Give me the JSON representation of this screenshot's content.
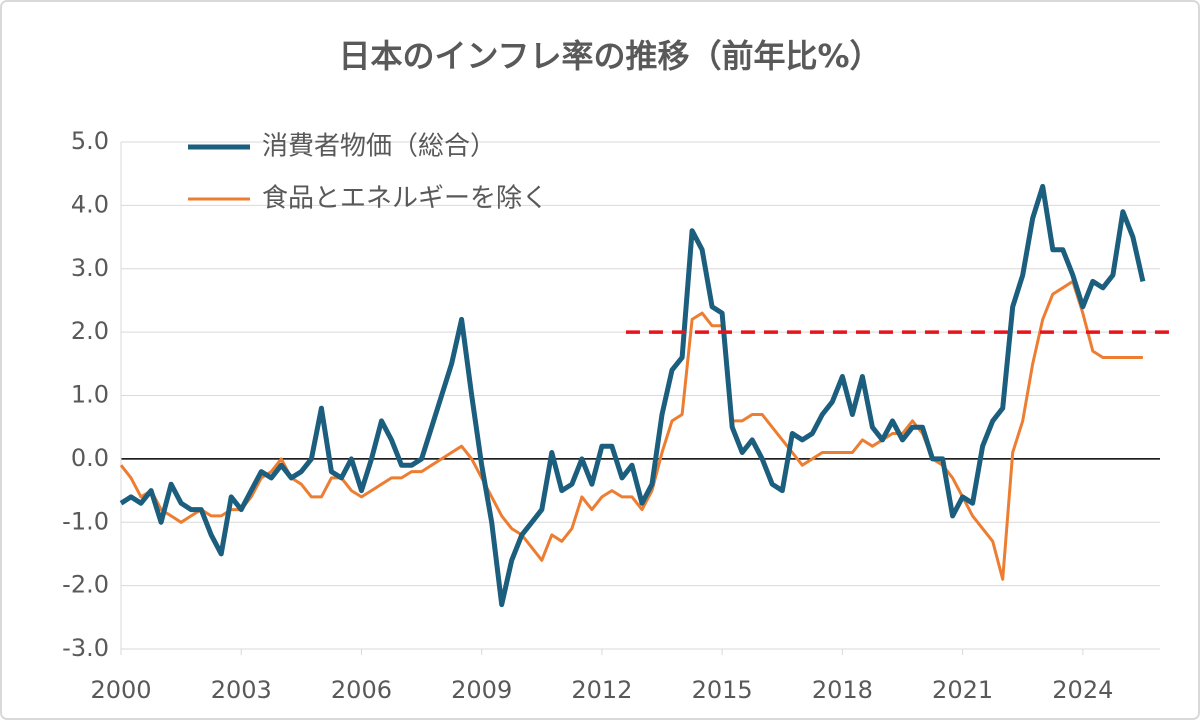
{
  "chart_data": {
    "type": "line",
    "title": "日本のインフレ率の推移（前年比%）",
    "x": [
      2000,
      2000.25,
      2000.5,
      2000.75,
      2001,
      2001.25,
      2001.5,
      2001.75,
      2002,
      2002.25,
      2002.5,
      2002.75,
      2003,
      2003.25,
      2003.5,
      2003.75,
      2004,
      2004.25,
      2004.5,
      2004.75,
      2005,
      2005.25,
      2005.5,
      2005.75,
      2006,
      2006.25,
      2006.5,
      2006.75,
      2007,
      2007.25,
      2007.5,
      2007.75,
      2008,
      2008.25,
      2008.5,
      2008.75,
      2009,
      2009.25,
      2009.5,
      2009.75,
      2010,
      2010.25,
      2010.5,
      2010.75,
      2011,
      2011.25,
      2011.5,
      2011.75,
      2012,
      2012.25,
      2012.5,
      2012.75,
      2013,
      2013.25,
      2013.5,
      2013.75,
      2014,
      2014.25,
      2014.5,
      2014.75,
      2015,
      2015.25,
      2015.5,
      2015.75,
      2016,
      2016.25,
      2016.5,
      2016.75,
      2017,
      2017.25,
      2017.5,
      2017.75,
      2018,
      2018.25,
      2018.5,
      2018.75,
      2019,
      2019.25,
      2019.5,
      2019.75,
      2020,
      2020.25,
      2020.5,
      2020.75,
      2021,
      2021.25,
      2021.5,
      2021.75,
      2022,
      2022.25,
      2022.5,
      2022.75,
      2023,
      2023.25,
      2023.5,
      2023.75,
      2024,
      2024.25,
      2024.5,
      2024.75,
      2025,
      2025.25,
      2025.5
    ],
    "series": [
      {
        "name": "消費者物価（総合）",
        "color": "#1b5e7e",
        "width": 5,
        "values": [
          -0.7,
          -0.6,
          -0.7,
          -0.5,
          -1.0,
          -0.4,
          -0.7,
          -0.8,
          -0.8,
          -1.2,
          -1.5,
          -0.6,
          -0.8,
          -0.5,
          -0.2,
          -0.3,
          -0.1,
          -0.3,
          -0.2,
          0.0,
          0.8,
          -0.2,
          -0.3,
          0.0,
          -0.5,
          0.0,
          0.6,
          0.3,
          -0.1,
          -0.1,
          0.0,
          0.5,
          1.0,
          1.5,
          2.2,
          1.0,
          -0.1,
          -1.0,
          -2.3,
          -1.6,
          -1.2,
          -1.0,
          -0.8,
          0.1,
          -0.5,
          -0.4,
          0.0,
          -0.4,
          0.2,
          0.2,
          -0.3,
          -0.1,
          -0.7,
          -0.4,
          0.7,
          1.4,
          1.6,
          3.6,
          3.3,
          2.4,
          2.3,
          0.5,
          0.1,
          0.3,
          0.0,
          -0.4,
          -0.5,
          0.4,
          0.3,
          0.4,
          0.7,
          0.9,
          1.3,
          0.7,
          1.3,
          0.5,
          0.3,
          0.6,
          0.3,
          0.5,
          0.5,
          0.0,
          0.0,
          -0.9,
          -0.6,
          -0.7,
          0.2,
          0.6,
          0.8,
          2.4,
          2.9,
          3.8,
          4.3,
          3.3,
          3.3,
          2.9,
          2.4,
          2.8,
          2.7,
          2.9,
          3.9,
          3.5,
          2.8
        ]
      },
      {
        "name": "食品とエネルギーを除く",
        "color": "#ed7d31",
        "width": 3,
        "values": [
          -0.1,
          -0.3,
          -0.6,
          -0.5,
          -0.8,
          -0.9,
          -1.0,
          -0.9,
          -0.8,
          -0.9,
          -0.9,
          -0.8,
          -0.8,
          -0.6,
          -0.3,
          -0.2,
          0.0,
          -0.3,
          -0.4,
          -0.6,
          -0.6,
          -0.3,
          -0.3,
          -0.5,
          -0.6,
          -0.5,
          -0.4,
          -0.3,
          -0.3,
          -0.2,
          -0.2,
          -0.1,
          0.0,
          0.1,
          0.2,
          0.0,
          -0.3,
          -0.6,
          -0.9,
          -1.1,
          -1.2,
          -1.4,
          -1.6,
          -1.2,
          -1.3,
          -1.1,
          -0.6,
          -0.8,
          -0.6,
          -0.5,
          -0.6,
          -0.6,
          -0.8,
          -0.5,
          0.1,
          0.6,
          0.7,
          2.2,
          2.3,
          2.1,
          2.1,
          0.6,
          0.6,
          0.7,
          0.7,
          0.5,
          0.3,
          0.1,
          -0.1,
          0.0,
          0.1,
          0.1,
          0.1,
          0.1,
          0.3,
          0.2,
          0.3,
          0.4,
          0.4,
          0.6,
          0.4,
          0.0,
          -0.1,
          -0.3,
          -0.6,
          -0.9,
          -1.1,
          -1.3,
          -1.9,
          0.1,
          0.6,
          1.5,
          2.2,
          2.6,
          2.7,
          2.8,
          2.3,
          1.7,
          1.6,
          1.6,
          1.6,
          1.6,
          1.6
        ]
      }
    ],
    "target_line": {
      "value": 2,
      "x_start": 2012.6,
      "color": "#e8141c"
    },
    "xlim": [
      2000,
      2026.3
    ],
    "xticks": [
      2000,
      2003,
      2006,
      2009,
      2012,
      2015,
      2018,
      2021,
      2024
    ],
    "ylim": [
      -3,
      5
    ],
    "yticks": [
      {
        "value": -3,
        "label": "-3.0"
      },
      {
        "value": -2,
        "label": "-2.0"
      },
      {
        "value": -1,
        "label": "-1.0"
      },
      {
        "value": 0,
        "label": "0.0"
      },
      {
        "value": 1,
        "label": "1.0"
      },
      {
        "value": 2,
        "label": "2.0"
      },
      {
        "value": 3,
        "label": "3.0"
      },
      {
        "value": 4,
        "label": "4.0"
      },
      {
        "value": 5,
        "label": "5.0"
      }
    ],
    "grid": true,
    "legend": "top-left"
  }
}
